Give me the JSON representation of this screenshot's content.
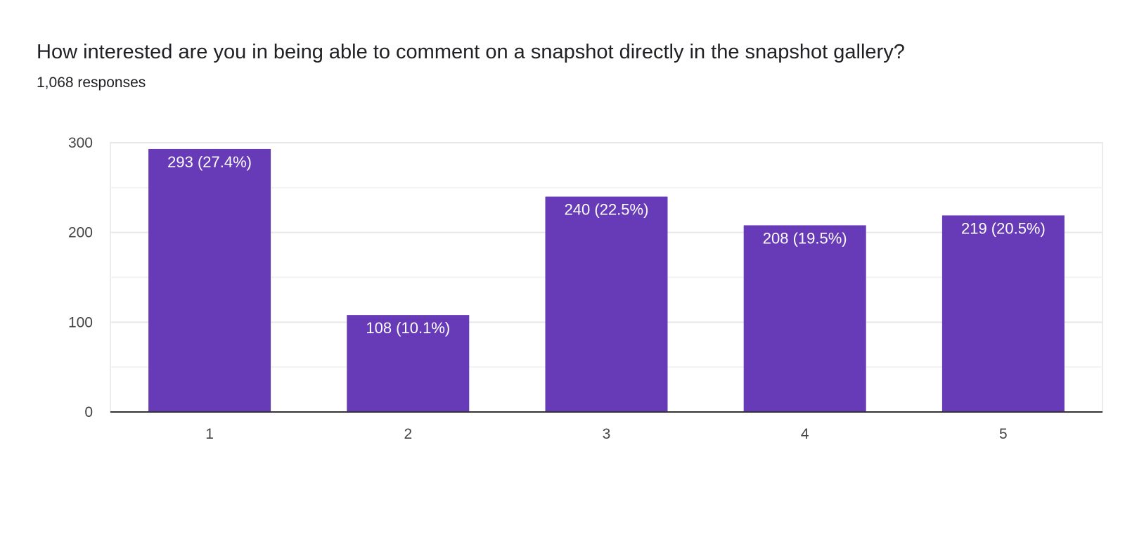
{
  "chart_data": {
    "type": "bar",
    "title": "How interested are you in being able to comment on a snapshot directly in the snapshot gallery?",
    "subtitle": "1,068 responses",
    "categories": [
      "1",
      "2",
      "3",
      "4",
      "5"
    ],
    "values": [
      293,
      108,
      240,
      208,
      219
    ],
    "data_labels": [
      "293 (27.4%)",
      "108 (10.1%)",
      "240 (22.5%)",
      "208 (19.5%)",
      "219 (20.5%)"
    ],
    "xlabel": "",
    "ylabel": "",
    "ylim": [
      0,
      300
    ],
    "yticks": [
      0,
      100,
      200,
      300
    ],
    "grid": true,
    "legend": "none",
    "bar_color": "#673ab7"
  }
}
